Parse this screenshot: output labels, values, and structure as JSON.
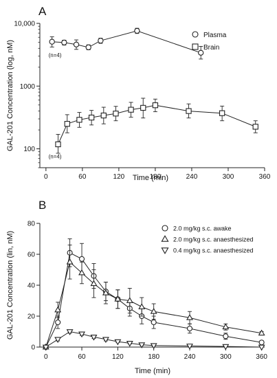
{
  "chart_data": [
    {
      "type": "line",
      "panel_label": "A",
      "xlabel": "Time (min)",
      "ylabel": "GAL-201 Concentration  (log, nM)",
      "xlim": [
        -10,
        360
      ],
      "ylim": [
        50,
        10000
      ],
      "y_scale": "log",
      "x_ticks": [
        0,
        60,
        120,
        180,
        240,
        300,
        360
      ],
      "y_ticks": [
        {
          "value": 100,
          "label": "100"
        },
        {
          "value": 1000,
          "label": "1000"
        },
        {
          "value": 10000,
          "label": "10,000"
        }
      ],
      "legend_position": "top-right",
      "annotations": [
        {
          "text": "(n=4)",
          "x": 15,
          "y": 2900
        },
        {
          "text": "(n=4)",
          "x": 15,
          "y": 70
        }
      ],
      "series": [
        {
          "name": "Plasma",
          "marker": "circle",
          "points": [
            {
              "x": 10,
              "y": 5100,
              "lo": 4200,
              "hi": 6100
            },
            {
              "x": 30,
              "y": 4950,
              "lo": 4500,
              "hi": 5400
            },
            {
              "x": 50,
              "y": 4600,
              "lo": 3850,
              "hi": 5450
            },
            {
              "x": 70,
              "y": 4150,
              "lo": 3800,
              "hi": 4550
            },
            {
              "x": 90,
              "y": 5300,
              "lo": 4800,
              "hi": 5800
            },
            {
              "x": 150,
              "y": 7600,
              "lo": 6900,
              "hi": 8350
            },
            {
              "x": 255,
              "y": 3400,
              "lo": 2700,
              "hi": 4300
            }
          ]
        },
        {
          "name": "Brain",
          "marker": "square",
          "points": [
            {
              "x": 20,
              "y": 118,
              "lo": 85,
              "hi": 170
            },
            {
              "x": 35,
              "y": 250,
              "lo": 180,
              "hi": 350
            },
            {
              "x": 55,
              "y": 290,
              "lo": 220,
              "hi": 380
            },
            {
              "x": 75,
              "y": 315,
              "lo": 240,
              "hi": 410
            },
            {
              "x": 95,
              "y": 340,
              "lo": 250,
              "hi": 460
            },
            {
              "x": 115,
              "y": 365,
              "lo": 280,
              "hi": 475
            },
            {
              "x": 140,
              "y": 420,
              "lo": 320,
              "hi": 550
            },
            {
              "x": 160,
              "y": 450,
              "lo": 310,
              "hi": 640
            },
            {
              "x": 180,
              "y": 495,
              "lo": 390,
              "hi": 620
            },
            {
              "x": 235,
              "y": 400,
              "lo": 310,
              "hi": 520
            },
            {
              "x": 290,
              "y": 370,
              "lo": 280,
              "hi": 480
            },
            {
              "x": 345,
              "y": 225,
              "lo": 180,
              "hi": 280
            }
          ]
        }
      ]
    },
    {
      "type": "line",
      "panel_label": "B",
      "xlabel": "Time (min)",
      "ylabel": "GAL-201 Concentration (lin, nM)",
      "xlim": [
        -10,
        365
      ],
      "ylim": [
        0,
        80
      ],
      "y_scale": "linear",
      "x_ticks": [
        0,
        60,
        120,
        180,
        240,
        300,
        360
      ],
      "y_ticks": [
        {
          "value": 0,
          "label": "0"
        },
        {
          "value": 20,
          "label": "20"
        },
        {
          "value": 40,
          "label": "40"
        },
        {
          "value": 60,
          "label": "60"
        },
        {
          "value": 80,
          "label": "80"
        }
      ],
      "legend_position": "top-right",
      "series": [
        {
          "name": "2.0 mg/kg s.c. awake",
          "marker": "circle",
          "points": [
            {
              "x": 0,
              "y": 0,
              "err": 0
            },
            {
              "x": 20,
              "y": 16,
              "err": 4
            },
            {
              "x": 40,
              "y": 61,
              "err": 9
            },
            {
              "x": 60,
              "y": 57,
              "err": 10
            },
            {
              "x": 80,
              "y": 46,
              "err": 8
            },
            {
              "x": 100,
              "y": 36,
              "err": 6
            },
            {
              "x": 120,
              "y": 31,
              "err": 6
            },
            {
              "x": 140,
              "y": 25,
              "err": 5
            },
            {
              "x": 160,
              "y": 20,
              "err": 5
            },
            {
              "x": 180,
              "y": 16,
              "err": 4
            },
            {
              "x": 240,
              "y": 12,
              "err": 3
            },
            {
              "x": 300,
              "y": 7,
              "err": 2
            },
            {
              "x": 360,
              "y": 3,
              "err": 1
            }
          ]
        },
        {
          "name": "2.0 mg/kg s.c. anaesthesized",
          "marker": "triangle-up",
          "points": [
            {
              "x": 0,
              "y": 0,
              "err": 0
            },
            {
              "x": 20,
              "y": 24,
              "err": 5
            },
            {
              "x": 40,
              "y": 55,
              "err": 11
            },
            {
              "x": 60,
              "y": 48,
              "err": 7
            },
            {
              "x": 80,
              "y": 41,
              "err": 9
            },
            {
              "x": 100,
              "y": 35,
              "err": 7
            },
            {
              "x": 120,
              "y": 31,
              "err": 6
            },
            {
              "x": 140,
              "y": 30,
              "err": 8
            },
            {
              "x": 160,
              "y": 26,
              "err": 6
            },
            {
              "x": 180,
              "y": 23,
              "err": 5
            },
            {
              "x": 240,
              "y": 19,
              "err": 4
            },
            {
              "x": 300,
              "y": 13,
              "err": 2
            },
            {
              "x": 360,
              "y": 9,
              "err": 1
            }
          ]
        },
        {
          "name": "0.4 mg/kg s.c. anaesthesized",
          "marker": "triangle-down",
          "points": [
            {
              "x": 0,
              "y": 0,
              "err": 0
            },
            {
              "x": 20,
              "y": 5,
              "err": 1
            },
            {
              "x": 40,
              "y": 10,
              "err": 1
            },
            {
              "x": 60,
              "y": 8.5,
              "err": 1
            },
            {
              "x": 80,
              "y": 6.5,
              "err": 1
            },
            {
              "x": 100,
              "y": 5,
              "err": 1
            },
            {
              "x": 120,
              "y": 3.5,
              "err": 0.5
            },
            {
              "x": 140,
              "y": 2.5,
              "err": 0.5
            },
            {
              "x": 160,
              "y": 1.5,
              "err": 0.5
            },
            {
              "x": 180,
              "y": 1,
              "err": 0.3
            },
            {
              "x": 240,
              "y": 0.7,
              "err": 0.3
            },
            {
              "x": 300,
              "y": 0.4,
              "err": 0.2
            },
            {
              "x": 360,
              "y": 0,
              "err": 0.2
            }
          ]
        }
      ]
    }
  ]
}
